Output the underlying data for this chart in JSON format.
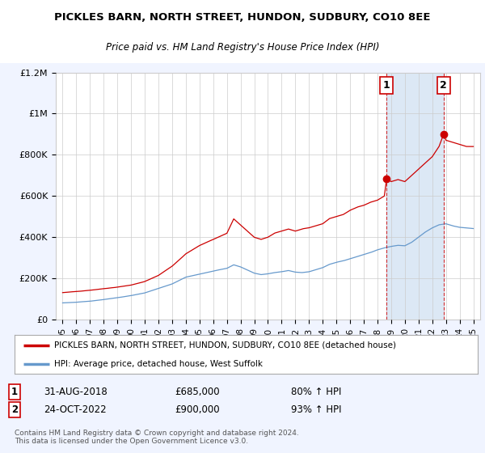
{
  "title": "PICKLES BARN, NORTH STREET, HUNDON, SUDBURY, CO10 8EE",
  "subtitle": "Price paid vs. HM Land Registry's House Price Index (HPI)",
  "legend_label1": "PICKLES BARN, NORTH STREET, HUNDON, SUDBURY, CO10 8EE (detached house)",
  "legend_label2": "HPI: Average price, detached house, West Suffolk",
  "annotation1_label": "1",
  "annotation1_date": "31-AUG-2018",
  "annotation1_price": "£685,000",
  "annotation1_hpi": "80% ↑ HPI",
  "annotation2_label": "2",
  "annotation2_date": "24-OCT-2022",
  "annotation2_price": "£900,000",
  "annotation2_hpi": "93% ↑ HPI",
  "footer": "Contains HM Land Registry data © Crown copyright and database right 2024.\nThis data is licensed under the Open Government Licence v3.0.",
  "red_color": "#cc0000",
  "blue_color": "#6699cc",
  "shade_color": "#dce8f5",
  "background_color": "#f0f4ff",
  "plot_bg_color": "#ffffff",
  "ylim": [
    0,
    1200000
  ],
  "yticks": [
    0,
    200000,
    400000,
    600000,
    800000,
    1000000,
    1200000
  ],
  "ytick_labels": [
    "£0",
    "£200K",
    "£400K",
    "£600K",
    "£800K",
    "£1M",
    "£1.2M"
  ],
  "ann1_x": 2018.67,
  "ann1_y": 685000,
  "ann2_x": 2022.83,
  "ann2_y": 900000,
  "vline1_x": 2018.67,
  "vline2_x": 2022.83,
  "xlim_left": 1994.5,
  "xlim_right": 2025.5
}
